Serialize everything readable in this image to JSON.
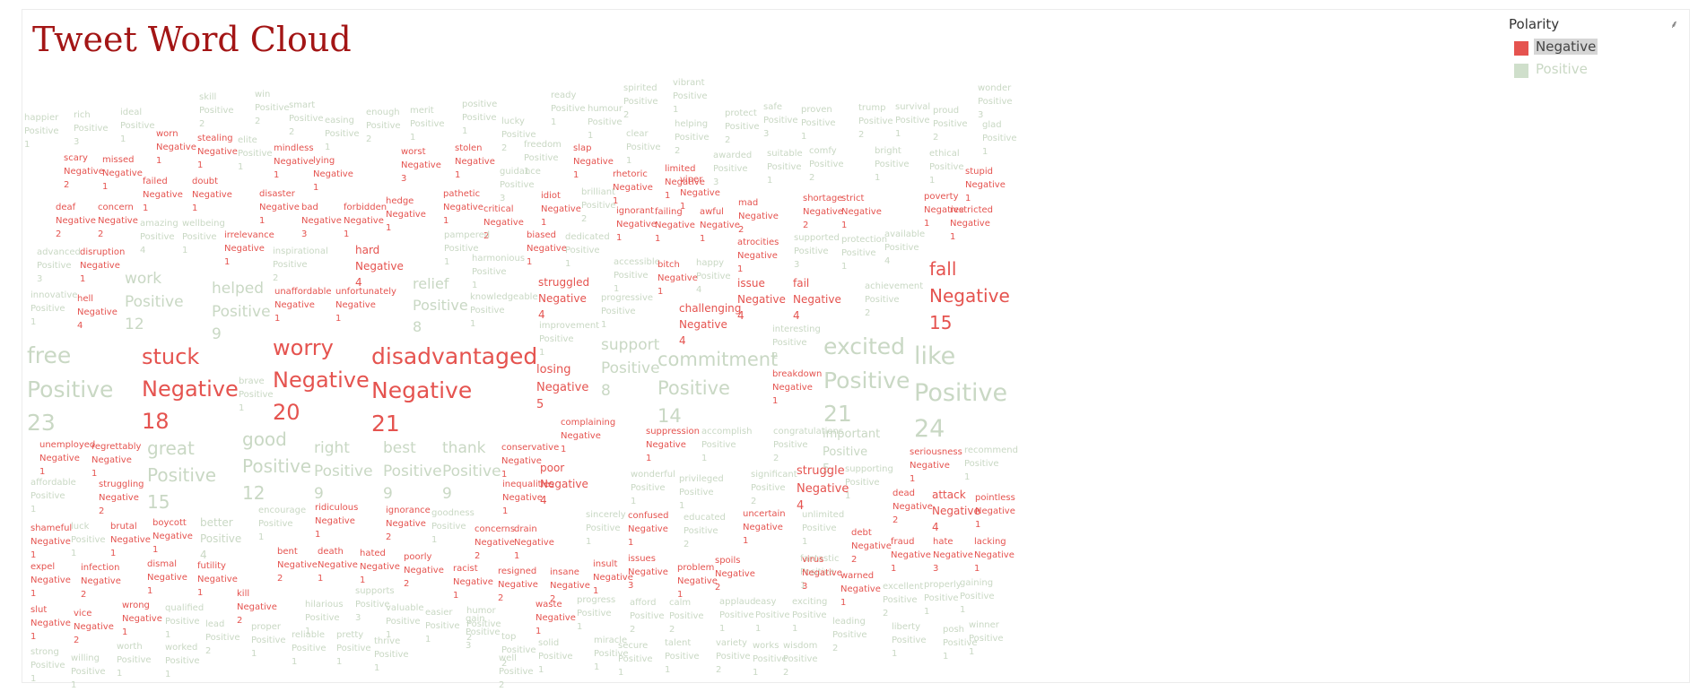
{
  "title": "Tweet Word Cloud",
  "legend": {
    "title": "Polarity",
    "items": [
      {
        "label": "Negative",
        "color": "#e5534f",
        "selected": true
      },
      {
        "label": "Positive",
        "color": "#cfdfcb",
        "selected": false
      }
    ]
  },
  "words": [
    {
      "w": "happier",
      "p": "Positive",
      "c": "1"
    },
    {
      "w": "rich",
      "p": "Positive",
      "c": "3"
    },
    {
      "w": "ideal",
      "p": "Positive",
      "c": "1"
    },
    {
      "w": "skill",
      "p": "Positive",
      "c": "2"
    },
    {
      "w": "win",
      "p": "Positive",
      "c": "2"
    },
    {
      "w": "smart",
      "p": "Positive",
      "c": "2"
    },
    {
      "w": "easing",
      "p": "Positive",
      "c": "1"
    },
    {
      "w": "enough",
      "p": "Positive",
      "c": "2"
    },
    {
      "w": "merit",
      "p": "Positive",
      "c": "1"
    },
    {
      "w": "positive",
      "p": "Positive",
      "c": "1"
    },
    {
      "w": "lucky",
      "p": "Positive",
      "c": "2"
    },
    {
      "w": "ready",
      "p": "Positive",
      "c": "1"
    },
    {
      "w": "humour",
      "p": "Positive",
      "c": "1"
    },
    {
      "w": "spirited",
      "p": "Positive",
      "c": "2"
    },
    {
      "w": "vibrant",
      "p": "Positive",
      "c": "1"
    },
    {
      "w": "helping",
      "p": "Positive",
      "c": "2"
    },
    {
      "w": "protect",
      "p": "Positive",
      "c": "2"
    },
    {
      "w": "safe",
      "p": "Positive",
      "c": "3"
    },
    {
      "w": "proven",
      "p": "Positive",
      "c": "1"
    },
    {
      "w": "trump",
      "p": "Positive",
      "c": "2"
    },
    {
      "w": "survival",
      "p": "Positive",
      "c": "1"
    },
    {
      "w": "proud",
      "p": "Positive",
      "c": "2"
    },
    {
      "w": "wonder",
      "p": "Positive",
      "c": "3"
    },
    {
      "w": "glad",
      "p": "Positive",
      "c": "1"
    },
    {
      "w": "worn",
      "p": "Negative",
      "c": "1"
    },
    {
      "w": "stealing",
      "p": "Negative",
      "c": "1"
    },
    {
      "w": "elite",
      "p": "Positive",
      "c": "1"
    },
    {
      "w": "mindless",
      "p": "Negative",
      "c": "1"
    },
    {
      "w": "worst",
      "p": "Negative",
      "c": "3"
    },
    {
      "w": "stolen",
      "p": "Negative",
      "c": "1"
    },
    {
      "w": "freedom",
      "p": "Positive",
      "c": "1"
    },
    {
      "w": "slap",
      "p": "Negative",
      "c": "1"
    },
    {
      "w": "clear",
      "p": "Positive",
      "c": "1"
    },
    {
      "w": "awarded",
      "p": "Positive",
      "c": "3"
    },
    {
      "w": "comfy",
      "p": "Positive",
      "c": "2"
    },
    {
      "w": "bright",
      "p": "Positive",
      "c": "1"
    },
    {
      "w": "ethical",
      "p": "Positive",
      "c": "1"
    },
    {
      "w": "scary",
      "p": "Negative",
      "c": "2"
    },
    {
      "w": "missed",
      "p": "Negative",
      "c": "1"
    },
    {
      "w": "lying",
      "p": "Negative",
      "c": "1"
    },
    {
      "w": "guidance",
      "p": "Positive",
      "c": "3"
    },
    {
      "w": "rhetoric",
      "p": "Negative",
      "c": "1"
    },
    {
      "w": "limited",
      "p": "Negative",
      "c": "1"
    },
    {
      "w": "viper",
      "p": "Negative",
      "c": "1"
    },
    {
      "w": "suitable",
      "p": "Positive",
      "c": "1"
    },
    {
      "w": "stupid",
      "p": "Negative",
      "c": "1"
    },
    {
      "w": "failed",
      "p": "Negative",
      "c": "1"
    },
    {
      "w": "doubt",
      "p": "Negative",
      "c": "1"
    },
    {
      "w": "disaster",
      "p": "Negative",
      "c": "1"
    },
    {
      "w": "pathetic",
      "p": "Negative",
      "c": "1"
    },
    {
      "w": "idiot",
      "p": "Negative",
      "c": "1"
    },
    {
      "w": "brilliant",
      "p": "Positive",
      "c": "2"
    },
    {
      "w": "shortage",
      "p": "Negative",
      "c": "2"
    },
    {
      "w": "poverty",
      "p": "Negative",
      "c": "1"
    },
    {
      "w": "deaf",
      "p": "Negative",
      "c": "2"
    },
    {
      "w": "concern",
      "p": "Negative",
      "c": "2"
    },
    {
      "w": "bad",
      "p": "Negative",
      "c": "3"
    },
    {
      "w": "forbidden",
      "p": "Negative",
      "c": "1"
    },
    {
      "w": "hedge",
      "p": "Negative",
      "c": "1"
    },
    {
      "w": "critical",
      "p": "Negative",
      "c": "2"
    },
    {
      "w": "ignorant",
      "p": "Negative",
      "c": "1"
    },
    {
      "w": "failing",
      "p": "Negative",
      "c": "1"
    },
    {
      "w": "awful",
      "p": "Negative",
      "c": "1"
    },
    {
      "w": "mad",
      "p": "Negative",
      "c": "2"
    },
    {
      "w": "strict",
      "p": "Negative",
      "c": "1"
    },
    {
      "w": "restricted",
      "p": "Negative",
      "c": "1"
    },
    {
      "w": "amazing",
      "p": "Positive",
      "c": "4"
    },
    {
      "w": "wellbeing",
      "p": "Positive",
      "c": "1"
    },
    {
      "w": "irrelevance",
      "p": "Negative",
      "c": "1"
    },
    {
      "w": "pampered",
      "p": "Positive",
      "c": "1"
    },
    {
      "w": "biased",
      "p": "Negative",
      "c": "1"
    },
    {
      "w": "dedicated",
      "p": "Positive",
      "c": "1"
    },
    {
      "w": "atrocities",
      "p": "Negative",
      "c": "1"
    },
    {
      "w": "supported",
      "p": "Positive",
      "c": "3"
    },
    {
      "w": "protection",
      "p": "Positive",
      "c": "1"
    },
    {
      "w": "available",
      "p": "Positive",
      "c": "4"
    },
    {
      "w": "advanced",
      "p": "Positive",
      "c": "3"
    },
    {
      "w": "disruption",
      "p": "Negative",
      "c": "1"
    },
    {
      "w": "inspirational",
      "p": "Positive",
      "c": "2"
    },
    {
      "w": "hard",
      "p": "Negative",
      "c": "4"
    },
    {
      "w": "harmonious",
      "p": "Positive",
      "c": "1"
    },
    {
      "w": "accessible",
      "p": "Positive",
      "c": "1"
    },
    {
      "w": "bitch",
      "p": "Negative",
      "c": "1"
    },
    {
      "w": "happy",
      "p": "Positive",
      "c": "4"
    },
    {
      "w": "fall",
      "p": "Negative",
      "c": "15"
    },
    {
      "w": "work",
      "p": "Positive",
      "c": "12"
    },
    {
      "w": "helped",
      "p": "Positive",
      "c": "9"
    },
    {
      "w": "relief",
      "p": "Positive",
      "c": "8"
    },
    {
      "w": "struggled",
      "p": "Negative",
      "c": "4"
    },
    {
      "w": "issue",
      "p": "Negative",
      "c": "4"
    },
    {
      "w": "fail",
      "p": "Negative",
      "c": "4"
    },
    {
      "w": "achievement",
      "p": "Positive",
      "c": "2"
    },
    {
      "w": "innovative",
      "p": "Positive",
      "c": "1"
    },
    {
      "w": "hell",
      "p": "Negative",
      "c": "4"
    },
    {
      "w": "unaffordable",
      "p": "Negative",
      "c": "1"
    },
    {
      "w": "unfortunately",
      "p": "Negative",
      "c": "1"
    },
    {
      "w": "knowledgeable",
      "p": "Positive",
      "c": "1"
    },
    {
      "w": "progressive",
      "p": "Positive",
      "c": "1"
    },
    {
      "w": "challenging",
      "p": "Negative",
      "c": "4"
    },
    {
      "w": "improvement",
      "p": "Positive",
      "c": "1"
    },
    {
      "w": "interesting",
      "p": "Positive",
      "c": "2"
    },
    {
      "w": "free",
      "p": "Positive",
      "c": "23"
    },
    {
      "w": "stuck",
      "p": "Negative",
      "c": "18"
    },
    {
      "w": "worry",
      "p": "Negative",
      "c": "20"
    },
    {
      "w": "disadvantaged",
      "p": "Negative",
      "c": "21"
    },
    {
      "w": "support",
      "p": "Positive",
      "c": "8"
    },
    {
      "w": "commitment",
      "p": "Positive",
      "c": "14"
    },
    {
      "w": "excited",
      "p": "Positive",
      "c": "21"
    },
    {
      "w": "like",
      "p": "Positive",
      "c": "24"
    },
    {
      "w": "brave",
      "p": "Positive",
      "c": "1"
    },
    {
      "w": "losing",
      "p": "Negative",
      "c": "5"
    },
    {
      "w": "breakdown",
      "p": "Negative",
      "c": "1"
    },
    {
      "w": "complaining",
      "p": "Negative",
      "c": "1"
    },
    {
      "w": "unemployed",
      "p": "Negative",
      "c": "1"
    },
    {
      "w": "regrettably",
      "p": "Negative",
      "c": "1"
    },
    {
      "w": "great",
      "p": "Positive",
      "c": "15"
    },
    {
      "w": "good",
      "p": "Positive",
      "c": "12"
    },
    {
      "w": "right",
      "p": "Positive",
      "c": "9"
    },
    {
      "w": "best",
      "p": "Positive",
      "c": "9"
    },
    {
      "w": "thank",
      "p": "Positive",
      "c": "9"
    },
    {
      "w": "conservative",
      "p": "Negative",
      "c": "1"
    },
    {
      "w": "suppression",
      "p": "Negative",
      "c": "1"
    },
    {
      "w": "accomplish",
      "p": "Positive",
      "c": "1"
    },
    {
      "w": "congratulations",
      "p": "Positive",
      "c": "2"
    },
    {
      "w": "important",
      "p": "Positive",
      "c": "5"
    },
    {
      "w": "seriousness",
      "p": "Negative",
      "c": "1"
    },
    {
      "w": "recommend",
      "p": "Positive",
      "c": "1"
    },
    {
      "w": "affordable",
      "p": "Positive",
      "c": "1"
    },
    {
      "w": "struggling",
      "p": "Negative",
      "c": "2"
    },
    {
      "w": "poor",
      "p": "Negative",
      "c": "4"
    },
    {
      "w": "inequalities",
      "p": "Negative",
      "c": "1"
    },
    {
      "w": "wonderful",
      "p": "Positive",
      "c": "1"
    },
    {
      "w": "privileged",
      "p": "Positive",
      "c": "1"
    },
    {
      "w": "significant",
      "p": "Positive",
      "c": "2"
    },
    {
      "w": "struggle",
      "p": "Negative",
      "c": "4"
    },
    {
      "w": "supporting",
      "p": "Positive",
      "c": "1"
    },
    {
      "w": "dead",
      "p": "Negative",
      "c": "2"
    },
    {
      "w": "attack",
      "p": "Negative",
      "c": "4"
    },
    {
      "w": "pointless",
      "p": "Negative",
      "c": "1"
    },
    {
      "w": "ridiculous",
      "p": "Negative",
      "c": "1"
    },
    {
      "w": "ignorance",
      "p": "Negative",
      "c": "2"
    },
    {
      "w": "goodness",
      "p": "Positive",
      "c": "1"
    },
    {
      "w": "encourage",
      "p": "Positive",
      "c": "1"
    },
    {
      "w": "better",
      "p": "Positive",
      "c": "4"
    },
    {
      "w": "shameful",
      "p": "Negative",
      "c": "1"
    },
    {
      "w": "luck",
      "p": "Positive",
      "c": "1"
    },
    {
      "w": "brutal",
      "p": "Negative",
      "c": "1"
    },
    {
      "w": "boycott",
      "p": "Negative",
      "c": "1"
    },
    {
      "w": "sincerely",
      "p": "Positive",
      "c": "1"
    },
    {
      "w": "confused",
      "p": "Negative",
      "c": "1"
    },
    {
      "w": "educated",
      "p": "Positive",
      "c": "2"
    },
    {
      "w": "uncertain",
      "p": "Negative",
      "c": "1"
    },
    {
      "w": "unlimited",
      "p": "Positive",
      "c": "1"
    },
    {
      "w": "concerns",
      "p": "Negative",
      "c": "2"
    },
    {
      "w": "drain",
      "p": "Negative",
      "c": "1"
    },
    {
      "w": "debt",
      "p": "Negative",
      "c": "2"
    },
    {
      "w": "fraud",
      "p": "Negative",
      "c": "1"
    },
    {
      "w": "hate",
      "p": "Negative",
      "c": "3"
    },
    {
      "w": "lacking",
      "p": "Negative",
      "c": "1"
    },
    {
      "w": "expel",
      "p": "Negative",
      "c": "1"
    },
    {
      "w": "infection",
      "p": "Negative",
      "c": "2"
    },
    {
      "w": "dismal",
      "p": "Negative",
      "c": "1"
    },
    {
      "w": "futility",
      "p": "Negative",
      "c": "1"
    },
    {
      "w": "bent",
      "p": "Negative",
      "c": "2"
    },
    {
      "w": "death",
      "p": "Negative",
      "c": "1"
    },
    {
      "w": "hated",
      "p": "Negative",
      "c": "1"
    },
    {
      "w": "poorly",
      "p": "Negative",
      "c": "2"
    },
    {
      "w": "racist",
      "p": "Negative",
      "c": "1"
    },
    {
      "w": "resigned",
      "p": "Negative",
      "c": "2"
    },
    {
      "w": "insane",
      "p": "Negative",
      "c": "2"
    },
    {
      "w": "insult",
      "p": "Negative",
      "c": "1"
    },
    {
      "w": "issues",
      "p": "Negative",
      "c": "3"
    },
    {
      "w": "problem",
      "p": "Negative",
      "c": "1"
    },
    {
      "w": "spoils",
      "p": "Negative",
      "c": "2"
    },
    {
      "w": "fantastic",
      "p": "Positive",
      "c": "1"
    },
    {
      "w": "virus",
      "p": "Negative",
      "c": "3"
    },
    {
      "w": "warned",
      "p": "Negative",
      "c": "1"
    },
    {
      "w": "kill",
      "p": "Negative",
      "c": "2"
    },
    {
      "w": "hilarious",
      "p": "Positive",
      "c": "1"
    },
    {
      "w": "supports",
      "p": "Positive",
      "c": "3"
    },
    {
      "w": "valuable",
      "p": "Positive",
      "c": "1"
    },
    {
      "w": "easier",
      "p": "Positive",
      "c": "1"
    },
    {
      "w": "humor",
      "p": "Positive",
      "c": "2"
    },
    {
      "w": "waste",
      "p": "Negative",
      "c": "1"
    },
    {
      "w": "progress",
      "p": "Positive",
      "c": "1"
    },
    {
      "w": "afford",
      "p": "Positive",
      "c": "2"
    },
    {
      "w": "calm",
      "p": "Positive",
      "c": "2"
    },
    {
      "w": "applaud",
      "p": "Positive",
      "c": "1"
    },
    {
      "w": "easy",
      "p": "Positive",
      "c": "1"
    },
    {
      "w": "exciting",
      "p": "Positive",
      "c": "1"
    },
    {
      "w": "excellent",
      "p": "Positive",
      "c": "2"
    },
    {
      "w": "properly",
      "p": "Positive",
      "c": "1"
    },
    {
      "w": "gaining",
      "p": "Positive",
      "c": "1"
    },
    {
      "w": "slut",
      "p": "Negative",
      "c": "1"
    },
    {
      "w": "vice",
      "p": "Negative",
      "c": "2"
    },
    {
      "w": "wrong",
      "p": "Negative",
      "c": "1"
    },
    {
      "w": "qualified",
      "p": "Positive",
      "c": "1"
    },
    {
      "w": "lead",
      "p": "Positive",
      "c": "2"
    },
    {
      "w": "proper",
      "p": "Positive",
      "c": "1"
    },
    {
      "w": "reliable",
      "p": "Positive",
      "c": "1"
    },
    {
      "w": "pretty",
      "p": "Positive",
      "c": "1"
    },
    {
      "w": "thrive",
      "p": "Positive",
      "c": "1"
    },
    {
      "w": "gain",
      "p": "Positive",
      "c": "3"
    },
    {
      "w": "top",
      "p": "Positive",
      "c": "2"
    },
    {
      "w": "solid",
      "p": "Positive",
      "c": "1"
    },
    {
      "w": "miracle",
      "p": "Positive",
      "c": "1"
    },
    {
      "w": "secure",
      "p": "Positive",
      "c": "1"
    },
    {
      "w": "talent",
      "p": "Positive",
      "c": "1"
    },
    {
      "w": "variety",
      "p": "Positive",
      "c": "2"
    },
    {
      "w": "works",
      "p": "Positive",
      "c": "1"
    },
    {
      "w": "wisdom",
      "p": "Positive",
      "c": "2"
    },
    {
      "w": "leading",
      "p": "Positive",
      "c": "2"
    },
    {
      "w": "liberty",
      "p": "Positive",
      "c": "1"
    },
    {
      "w": "posh",
      "p": "Positive",
      "c": "1"
    },
    {
      "w": "winner",
      "p": "Positive",
      "c": "1"
    },
    {
      "w": "strong",
      "p": "Positive",
      "c": "1"
    },
    {
      "w": "willing",
      "p": "Positive",
      "c": "1"
    },
    {
      "w": "worth",
      "p": "Positive",
      "c": "1"
    },
    {
      "w": "worked",
      "p": "Positive",
      "c": "1"
    },
    {
      "w": "well",
      "p": "Positive",
      "c": "2"
    }
  ]
}
